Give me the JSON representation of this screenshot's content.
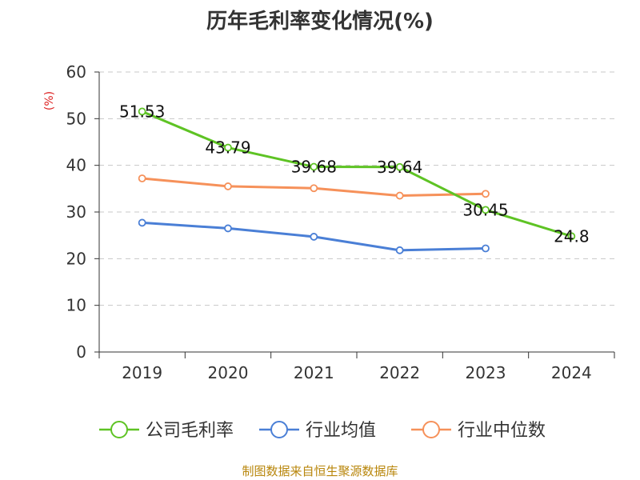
{
  "chart_data": {
    "type": "line",
    "title": "历年毛利率变化情况(%)",
    "ylabel": "(%)",
    "ylabel_color": "#dd2222",
    "xlabel": "",
    "categories": [
      "2019",
      "2020",
      "2021",
      "2022",
      "2023",
      "2024"
    ],
    "ylim": [
      0,
      60
    ],
    "yticks": [
      0,
      10,
      20,
      30,
      40,
      50,
      60
    ],
    "grid": true,
    "legend_position": "bottom",
    "series": [
      {
        "name": "公司毛利率",
        "color": "#5ec324",
        "values": [
          51.53,
          43.79,
          39.68,
          39.64,
          30.45,
          24.8
        ],
        "labels": [
          "51.53",
          "43.79",
          "39.68",
          "39.64",
          "30.45",
          "24.8"
        ]
      },
      {
        "name": "行业均值",
        "color": "#4a7fd6",
        "values": [
          27.7,
          26.5,
          24.7,
          21.8,
          22.2,
          null
        ]
      },
      {
        "name": "行业中位数",
        "color": "#f6915a",
        "values": [
          37.2,
          35.5,
          35.1,
          33.5,
          33.9,
          null
        ]
      }
    ]
  },
  "footer": "制图数据来自恒生聚源数据库"
}
